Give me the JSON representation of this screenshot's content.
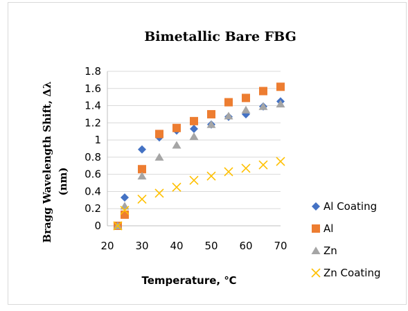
{
  "chart_data": {
    "type": "scatter",
    "title": "Bimetallic Bare FBG",
    "ylabel_line1": "Bragg Wavelength Shift, Δλ",
    "ylabel_line2": "(nm)",
    "xlabel": "Temperature, ℃",
    "xlim": [
      20,
      70
    ],
    "ylim": [
      0,
      1.8
    ],
    "x_ticks": [
      {
        "value": 20,
        "label": "20"
      },
      {
        "value": 30,
        "label": "30"
      },
      {
        "value": 40,
        "label": "40"
      },
      {
        "value": 50,
        "label": "50"
      },
      {
        "value": 60,
        "label": "60"
      },
      {
        "value": 70,
        "label": "70"
      }
    ],
    "y_ticks": [
      {
        "value": 0,
        "label": "0"
      },
      {
        "value": 0.2,
        "label": "0.2"
      },
      {
        "value": 0.4,
        "label": "0.4"
      },
      {
        "value": 0.6,
        "label": "0.6"
      },
      {
        "value": 0.8,
        "label": "0.8"
      },
      {
        "value": 1.0,
        "label": "1"
      },
      {
        "value": 1.2,
        "label": "1.2"
      },
      {
        "value": 1.4,
        "label": "1.4"
      },
      {
        "value": 1.6,
        "label": "1.6"
      },
      {
        "value": 1.8,
        "label": "1.8"
      }
    ],
    "grid": "horizontal",
    "legend_position": "right",
    "series": [
      {
        "name": "Al Coating",
        "marker": "diamond",
        "color": "#4472C4",
        "x": [
          23,
          25,
          30,
          35,
          40,
          45,
          50,
          55,
          60,
          65,
          70
        ],
        "y": [
          0.0,
          0.33,
          0.89,
          1.03,
          1.11,
          1.13,
          1.18,
          1.27,
          1.3,
          1.39,
          1.45
        ]
      },
      {
        "name": "Al",
        "marker": "square",
        "color": "#ED7D31",
        "x": [
          23,
          25,
          30,
          35,
          40,
          45,
          50,
          55,
          60,
          65,
          70
        ],
        "y": [
          0.0,
          0.13,
          0.66,
          1.07,
          1.14,
          1.22,
          1.3,
          1.44,
          1.49,
          1.57,
          1.62
        ]
      },
      {
        "name": "Zn",
        "marker": "triangle",
        "color": "#A5A5A5",
        "x": [
          23,
          25,
          30,
          35,
          40,
          45,
          50,
          55,
          60,
          65,
          70
        ],
        "y": [
          0.0,
          0.23,
          0.58,
          0.8,
          0.94,
          1.04,
          1.18,
          1.28,
          1.35,
          1.39,
          1.42
        ]
      },
      {
        "name": "Zn Coating",
        "marker": "x",
        "color": "#FFC000",
        "x": [
          23,
          25,
          30,
          35,
          40,
          45,
          50,
          55,
          60,
          65,
          70
        ],
        "y": [
          0.0,
          0.18,
          0.31,
          0.38,
          0.45,
          0.53,
          0.58,
          0.63,
          0.67,
          0.71,
          0.75
        ]
      }
    ]
  }
}
